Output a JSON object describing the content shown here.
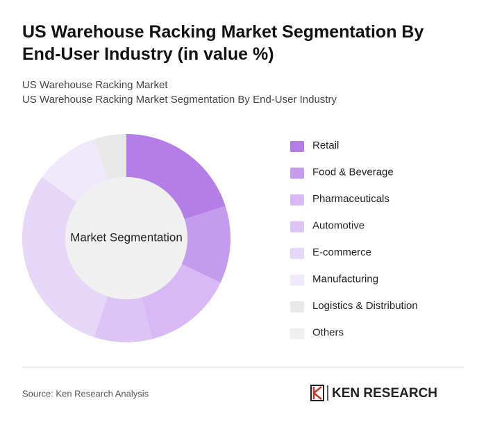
{
  "chart_data": {
    "type": "donut",
    "title": "US Warehouse Racking Market Segmentation By End-User Industry (in value %)",
    "subtitle": [
      "US Warehouse Racking Market",
      "US Warehouse Racking Market Segmentation By End-User Industry"
    ],
    "center_label": "Market Segmentation",
    "categories": [
      "Retail",
      "Food & Beverage",
      "Pharmaceuticals",
      "Automotive",
      "E-commerce",
      "Manufacturing",
      "Logistics & Distribution",
      "Others"
    ],
    "values": [
      20,
      12,
      14,
      9,
      30,
      10,
      5,
      0
    ],
    "colors": [
      "#b47ee6",
      "#c59bee",
      "#d8b8f5",
      "#dcc5f5",
      "#e6d6f8",
      "#f0e8fb",
      "#e8e8e8",
      "#efefef"
    ]
  },
  "footer": {
    "source": "Source: Ken Research Analysis",
    "logo": "KEN RESEARCH"
  }
}
